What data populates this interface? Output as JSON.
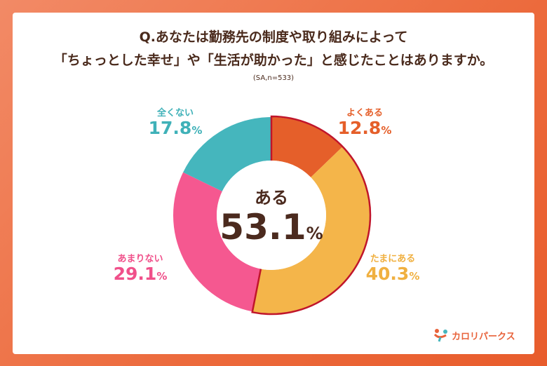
{
  "title_line1": "Q.あなたは勤務先の制度や取り組みによって",
  "title_line2": "「ちょっとした幸せ」や「生活が助かった」と感じたことはありますか。",
  "note": "(SA,n=533)",
  "center": {
    "label": "ある",
    "value": "53.1",
    "unit": "%"
  },
  "logo": {
    "text": "カロリパークス"
  },
  "chart_data": {
    "type": "pie",
    "donut": true,
    "title": "Q.あなたは勤務先の制度や取り組みによって「ちょっとした幸せ」や「生活が助かった」と感じたことはありますか。",
    "slices": [
      {
        "name": "よくある",
        "value": 12.8,
        "color": "#e55f2a",
        "highlighted": true
      },
      {
        "name": "たまにある",
        "value": 40.3,
        "color": "#f4b54a",
        "highlighted": true
      },
      {
        "name": "あまりない",
        "value": 29.1,
        "color": "#f55890",
        "highlighted": false
      },
      {
        "name": "全くない",
        "value": 17.8,
        "color": "#45b6bd",
        "highlighted": false
      }
    ],
    "highlight_outline_color": "#c0152a",
    "label_colors": [
      "#e55f2a",
      "#f0b040",
      "#f0508a",
      "#3fb1b8"
    ]
  }
}
